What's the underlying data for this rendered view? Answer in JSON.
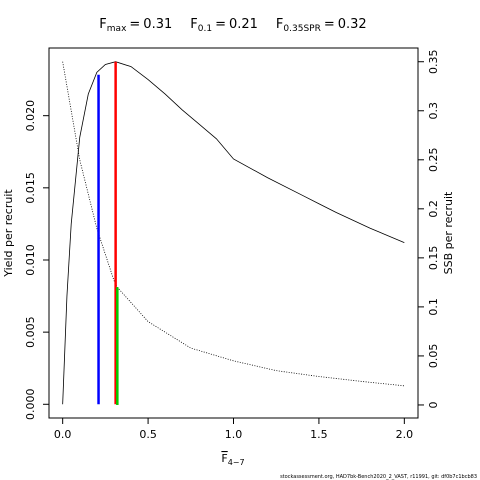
{
  "chart_data": {
    "type": "line",
    "title_parts": [
      {
        "symbol": "F",
        "subscript": "max",
        "relation": "=",
        "value": 0.31
      },
      {
        "symbol": "F",
        "subscript": "0.1",
        "relation": "=",
        "value": 0.21
      },
      {
        "symbol": "F",
        "subscript": "0.35SPR",
        "relation": "=",
        "value": 0.32
      }
    ],
    "xlabel": {
      "symbol": "F",
      "subscript": "4−7"
    },
    "ylabel": "Yield per recruit",
    "y2label": "SSB per recruit",
    "footer": "stockassessment.org, HAD7bk-Bench2020_2_VAST, r11991, git: df0b7c1bcb83",
    "xlim": [
      -0.08,
      2.08
    ],
    "xticks": [
      {
        "value": 0,
        "label": "0.0"
      },
      {
        "value": 0.5,
        "label": "0.5"
      },
      {
        "value": 1,
        "label": "1.0"
      },
      {
        "value": 1.5,
        "label": "1.5"
      },
      {
        "value": 2,
        "label": "2.0"
      }
    ],
    "ylim": [
      -0.00095,
      0.02469
    ],
    "yticks": [
      {
        "value": 0,
        "label": "0.000"
      },
      {
        "value": 0.005,
        "label": "0.005"
      },
      {
        "value": 0.01,
        "label": "0.010"
      },
      {
        "value": 0.015,
        "label": "0.015"
      },
      {
        "value": 0.02,
        "label": "0.020"
      }
    ],
    "y2lim": [
      -0.0133,
      0.364
    ],
    "y2ticks": [
      0,
      0.05,
      0.1,
      0.15,
      0.2,
      0.25,
      0.3,
      0.35
    ],
    "series": [
      {
        "name": "Yield per recruit",
        "color": "#000000",
        "dash": "solid",
        "x": [
          0,
          0.025,
          0.05,
          0.1,
          0.15,
          0.2,
          0.25,
          0.31,
          0.4,
          0.5,
          0.6,
          0.7,
          0.8,
          0.9,
          1.0,
          1.2,
          1.4,
          1.5,
          1.6,
          1.8,
          2.0
        ],
        "values": [
          0,
          0.0075,
          0.0125,
          0.0185,
          0.0215,
          0.023,
          0.02355,
          0.02374,
          0.0234,
          0.0225,
          0.0215,
          0.0204,
          0.0194,
          0.0184,
          0.017,
          0.0157,
          0.0145,
          0.0139,
          0.0133,
          0.0122,
          0.0112
        ]
      },
      {
        "name": "SSB per recruit",
        "color": "#000000",
        "dash": "dotted",
        "axis": "y2",
        "x": [
          0,
          0.1,
          0.2,
          0.3,
          0.32,
          0.5,
          0.75,
          1.0,
          1.25,
          1.5,
          1.75,
          2.0
        ],
        "values": [
          0.35,
          0.25,
          0.18,
          0.127,
          0.12,
          0.085,
          0.058,
          0.045,
          0.035,
          0.029,
          0.024,
          0.0195
        ]
      }
    ],
    "reference_lines": [
      {
        "F": 0.31,
        "height": 0.02374,
        "color": "#ff0000"
      },
      {
        "F": 0.21,
        "height": 0.02284,
        "color": "#0000ff"
      },
      {
        "F": 0.32,
        "height": 0.12,
        "axis": "y2",
        "color": "#00cc00"
      }
    ]
  }
}
